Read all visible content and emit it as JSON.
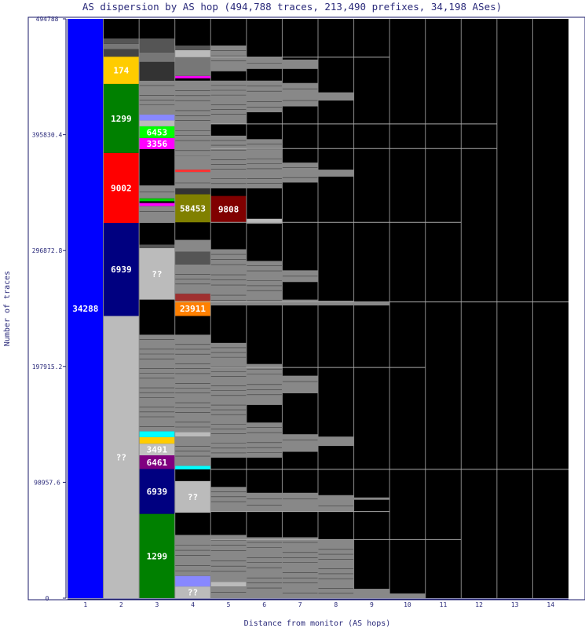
{
  "chart_data": {
    "type": "stacked-column",
    "title": "AS dispersion by AS hop (494,788 traces, 213,490 prefixes, 34,198 ASes)",
    "xlabel": "Distance from monitor (AS hops)",
    "ylabel": "Number of traces",
    "ylim": [
      0,
      494788
    ],
    "yticks": [
      "0",
      "98957.6",
      "197915.2",
      "296872.8",
      "395830.4",
      "494788"
    ],
    "xticks": [
      "1",
      "2",
      "3",
      "4",
      "5",
      "6",
      "7",
      "8",
      "9",
      "10",
      "11",
      "12",
      "13",
      "14"
    ],
    "background": "#000000",
    "other_as_color": "#888888",
    "grid_line_color": "#aaaaaa",
    "columns": [
      {
        "hop": "1",
        "segments": [
          {
            "label": "34288",
            "from": 0,
            "to": 494788,
            "color": "#0000ff"
          }
        ]
      },
      {
        "hop": "2",
        "segments": [
          {
            "label": "??",
            "from": 0,
            "to": 241000,
            "color": "#bbbbbb"
          },
          {
            "label": "6939",
            "from": 241000,
            "to": 320500,
            "color": "#000080"
          },
          {
            "label": "9002",
            "from": 320500,
            "to": 380300,
            "color": "#ff0000"
          },
          {
            "label": "1299",
            "from": 380300,
            "to": 439200,
            "color": "#008000"
          },
          {
            "label": "174",
            "from": 439200,
            "to": 462500,
            "color": "#ffcc00"
          },
          {
            "label": "",
            "from": 462500,
            "to": 469000,
            "color": "#444444"
          },
          {
            "label": "",
            "from": 469000,
            "to": 473500,
            "color": "#777777"
          },
          {
            "label": "",
            "from": 473500,
            "to": 478000,
            "color": "#555555"
          }
        ]
      },
      {
        "hop": "3",
        "segments": [
          {
            "label": "1299",
            "from": 0,
            "to": 72000,
            "color": "#008000"
          },
          {
            "label": "6939",
            "from": 72000,
            "to": 110300,
            "color": "#000080"
          },
          {
            "label": "6461",
            "from": 110300,
            "to": 122000,
            "color": "#800080"
          },
          {
            "label": "3491",
            "from": 122000,
            "to": 132000,
            "color": "#c0c0c0"
          },
          {
            "label": "",
            "from": 132000,
            "to": 137500,
            "color": "#ffcc00"
          },
          {
            "label": "",
            "from": 137500,
            "to": 142500,
            "color": "#00ffff"
          },
          {
            "label": "",
            "from": 142500,
            "to": 225000,
            "color": "#888888"
          },
          {
            "label": "??",
            "from": 255000,
            "to": 299000,
            "color": "#bbbbbb"
          },
          {
            "label": "",
            "from": 299000,
            "to": 302000,
            "color": "#555555"
          },
          {
            "label": "",
            "from": 306000,
            "to": 320500,
            "color": "#000000"
          },
          {
            "label": "",
            "from": 320500,
            "to": 335000,
            "color": "#888888"
          },
          {
            "label": "",
            "from": 335000,
            "to": 337500,
            "color": "#ff00ff"
          },
          {
            "label": "",
            "from": 339000,
            "to": 341500,
            "color": "#00cc00"
          },
          {
            "label": "",
            "from": 341500,
            "to": 352500,
            "color": "#888888"
          },
          {
            "label": "3356",
            "from": 383500,
            "to": 393000,
            "color": "#ff00ff"
          },
          {
            "label": "6453",
            "from": 393000,
            "to": 403000,
            "color": "#00ff00"
          },
          {
            "label": "",
            "from": 403000,
            "to": 408000,
            "color": "#bbbbbb"
          },
          {
            "label": "",
            "from": 408000,
            "to": 413000,
            "color": "#8888ff"
          },
          {
            "label": "",
            "from": 413000,
            "to": 442000,
            "color": "#888888"
          },
          {
            "label": "",
            "from": 442000,
            "to": 458000,
            "color": "#333333"
          },
          {
            "label": "",
            "from": 458000,
            "to": 466000,
            "color": "#777777"
          },
          {
            "label": "",
            "from": 466000,
            "to": 478000,
            "color": "#555555"
          }
        ]
      },
      {
        "hop": "4",
        "segments": [
          {
            "label": "??",
            "from": 0,
            "to": 10000,
            "color": "#bbbbbb"
          },
          {
            "label": "",
            "from": 10000,
            "to": 19000,
            "color": "#8888ff"
          },
          {
            "label": "",
            "from": 19000,
            "to": 54000,
            "color": "#888888"
          },
          {
            "label": "??",
            "from": 73000,
            "to": 100000,
            "color": "#bbbbbb"
          },
          {
            "label": "",
            "from": 110000,
            "to": 113000,
            "color": "#00ffff"
          },
          {
            "label": "",
            "from": 113000,
            "to": 138000,
            "color": "#888888"
          },
          {
            "label": "",
            "from": 138000,
            "to": 142000,
            "color": "#bbbbbb"
          },
          {
            "label": "",
            "from": 142000,
            "to": 225000,
            "color": "#888888"
          },
          {
            "label": "23911",
            "from": 241000,
            "to": 254000,
            "color": "#ff8000"
          },
          {
            "label": "",
            "from": 254000,
            "to": 260000,
            "color": "#a03030"
          },
          {
            "label": "",
            "from": 260000,
            "to": 285000,
            "color": "#888888"
          },
          {
            "label": "",
            "from": 285000,
            "to": 296000,
            "color": "#555555"
          },
          {
            "label": "",
            "from": 296000,
            "to": 306000,
            "color": "#888888"
          },
          {
            "label": "58453",
            "from": 321000,
            "to": 345000,
            "color": "#808000"
          },
          {
            "label": "",
            "from": 345000,
            "to": 350000,
            "color": "#333333"
          },
          {
            "label": "",
            "from": 350000,
            "to": 364000,
            "color": "#888888"
          },
          {
            "label": "",
            "from": 364000,
            "to": 366000,
            "color": "#ff3333"
          },
          {
            "label": "",
            "from": 366000,
            "to": 378000,
            "color": "#888888"
          },
          {
            "label": "",
            "from": 378000,
            "to": 442000,
            "color": "#888888"
          },
          {
            "label": "",
            "from": 444000,
            "to": 446000,
            "color": "#ff00ff"
          },
          {
            "label": "",
            "from": 446000,
            "to": 462000,
            "color": "#777777"
          },
          {
            "label": "",
            "from": 462000,
            "to": 468000,
            "color": "#bbbbbb"
          },
          {
            "label": "",
            "from": 468000,
            "to": 472000,
            "color": "#555555"
          }
        ]
      },
      {
        "hop": "5",
        "segments": [
          {
            "label": "",
            "from": 0,
            "to": 10000,
            "color": "#888888"
          },
          {
            "label": "",
            "from": 10000,
            "to": 14000,
            "color": "#bbbbbb"
          },
          {
            "label": "",
            "from": 14000,
            "to": 54000,
            "color": "#888888"
          },
          {
            "label": "",
            "from": 74000,
            "to": 95000,
            "color": "#888888"
          },
          {
            "label": "",
            "from": 120000,
            "to": 218000,
            "color": "#888888"
          },
          {
            "label": "",
            "from": 250000,
            "to": 298000,
            "color": "#888888"
          },
          {
            "label": "9808",
            "from": 321000,
            "to": 343500,
            "color": "#800000"
          },
          {
            "label": "",
            "from": 350000,
            "to": 395000,
            "color": "#888888"
          },
          {
            "label": "",
            "from": 405000,
            "to": 442000,
            "color": "#888888"
          },
          {
            "label": "",
            "from": 450000,
            "to": 472000,
            "color": "#888888"
          }
        ]
      },
      {
        "hop": "6",
        "segments": [
          {
            "label": "",
            "from": 0,
            "to": 52000,
            "color": "#888888"
          },
          {
            "label": "",
            "from": 74000,
            "to": 90000,
            "color": "#888888"
          },
          {
            "label": "",
            "from": 120000,
            "to": 150000,
            "color": "#888888"
          },
          {
            "label": "",
            "from": 165000,
            "to": 200000,
            "color": "#888888"
          },
          {
            "label": "",
            "from": 250000,
            "to": 288000,
            "color": "#888888"
          },
          {
            "label": "",
            "from": 320000,
            "to": 324000,
            "color": "#bbbbbb"
          },
          {
            "label": "",
            "from": 350000,
            "to": 392000,
            "color": "#888888"
          },
          {
            "label": "",
            "from": 415000,
            "to": 442000,
            "color": "#888888"
          },
          {
            "label": "",
            "from": 452000,
            "to": 462000,
            "color": "#888888"
          }
        ]
      },
      {
        "hop": "7",
        "segments": [
          {
            "label": "",
            "from": 0,
            "to": 52000,
            "color": "#888888"
          },
          {
            "label": "",
            "from": 74000,
            "to": 90000,
            "color": "#888888"
          },
          {
            "label": "",
            "from": 125000,
            "to": 140000,
            "color": "#888888"
          },
          {
            "label": "",
            "from": 175000,
            "to": 190000,
            "color": "#888888"
          },
          {
            "label": "",
            "from": 250000,
            "to": 255000,
            "color": "#888888"
          },
          {
            "label": "",
            "from": 270000,
            "to": 280000,
            "color": "#888888"
          },
          {
            "label": "",
            "from": 355000,
            "to": 372000,
            "color": "#888888"
          },
          {
            "label": "",
            "from": 420000,
            "to": 440000,
            "color": "#888888"
          },
          {
            "label": "",
            "from": 452000,
            "to": 460000,
            "color": "#888888"
          }
        ]
      },
      {
        "hop": "8",
        "segments": [
          {
            "label": "",
            "from": 0,
            "to": 50000,
            "color": "#888888"
          },
          {
            "label": "",
            "from": 74000,
            "to": 88000,
            "color": "#888888"
          },
          {
            "label": "",
            "from": 130000,
            "to": 138000,
            "color": "#888888"
          },
          {
            "label": "",
            "from": 250000,
            "to": 254000,
            "color": "#888888"
          },
          {
            "label": "",
            "from": 360000,
            "to": 366000,
            "color": "#888888"
          },
          {
            "label": "",
            "from": 425000,
            "to": 432000,
            "color": "#888888"
          }
        ]
      },
      {
        "hop": "9",
        "segments": [
          {
            "label": "",
            "from": 0,
            "to": 8000,
            "color": "#888888"
          },
          {
            "label": "",
            "from": 84000,
            "to": 86000,
            "color": "#888888"
          },
          {
            "label": "",
            "from": 250000,
            "to": 253000,
            "color": "#888888"
          }
        ]
      },
      {
        "hop": "10",
        "segments": [
          {
            "label": "",
            "from": 0,
            "to": 4000,
            "color": "#888888"
          }
        ]
      },
      {
        "hop": "11",
        "segments": []
      },
      {
        "hop": "12",
        "segments": []
      },
      {
        "hop": "13",
        "segments": []
      },
      {
        "hop": "14",
        "segments": []
      }
    ],
    "grid_lines": [
      {
        "from_hop": 5,
        "to_hop": 11,
        "y": 50000
      },
      {
        "from_hop": 5,
        "to_hop": 9,
        "y": 74000
      },
      {
        "from_hop": 5,
        "to_hop": 14,
        "y": 110000
      },
      {
        "from_hop": 5,
        "to_hop": 10,
        "y": 197000
      },
      {
        "from_hop": 4,
        "to_hop": 14,
        "y": 253000
      },
      {
        "from_hop": 5,
        "to_hop": 11,
        "y": 321000
      },
      {
        "from_hop": 5,
        "to_hop": 12,
        "y": 384000
      },
      {
        "from_hop": 5,
        "to_hop": 12,
        "y": 405000
      },
      {
        "from_hop": 5,
        "to_hop": 9,
        "y": 462000
      }
    ]
  }
}
